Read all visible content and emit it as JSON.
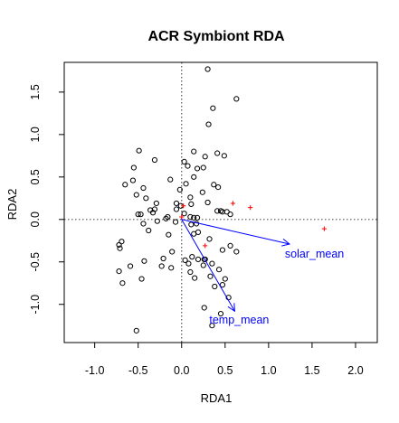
{
  "chart_data": {
    "type": "scatter",
    "title": "ACR Symbiont RDA",
    "xlabel": "RDA1",
    "ylabel": "RDA2",
    "xlim": [
      -1.35,
      2.25
    ],
    "ylim": [
      -1.45,
      1.85
    ],
    "xticks": [
      -1.0,
      -0.5,
      0.0,
      0.5,
      1.0,
      1.5,
      2.0
    ],
    "xtick_labels": [
      "-1.0",
      "-0.5",
      "0.0",
      "0.5",
      "1.0",
      "1.5",
      "2.0"
    ],
    "yticks": [
      -1.0,
      -0.5,
      0.0,
      0.5,
      1.0,
      1.5
    ],
    "ytick_labels": [
      "-1.0",
      "-0.5",
      "0.0",
      "0.5",
      "1.0",
      "1.5"
    ],
    "reference_lines": {
      "x": 0,
      "y": 0,
      "style": "dotted"
    },
    "colors": {
      "sites": "#000000",
      "species": "#ff0000",
      "arrows": "#0000ff",
      "refline": "#555555"
    },
    "series": [
      {
        "name": "sites",
        "marker": "open-circle",
        "points": [
          [
            0.3,
            1.77
          ],
          [
            0.63,
            1.42
          ],
          [
            0.36,
            1.31
          ],
          [
            0.31,
            1.12
          ],
          [
            0.14,
            0.8
          ],
          [
            0.49,
            0.75
          ],
          [
            0.27,
            0.74
          ],
          [
            0.41,
            0.78
          ],
          [
            -0.49,
            0.81
          ],
          [
            -0.55,
            0.61
          ],
          [
            -0.31,
            0.7
          ],
          [
            -0.65,
            0.41
          ],
          [
            -0.56,
            0.46
          ],
          [
            -0.44,
            0.37
          ],
          [
            -0.13,
            0.47
          ],
          [
            -0.52,
            0.29
          ],
          [
            -0.41,
            0.25
          ],
          [
            -0.29,
            0.19
          ],
          [
            -0.47,
            0.06
          ],
          [
            -0.5,
            0.06
          ],
          [
            -0.36,
            0.11
          ],
          [
            -0.33,
            0.08
          ],
          [
            -0.31,
            0.12
          ],
          [
            -0.02,
            0.35
          ],
          [
            0.05,
            0.42
          ],
          [
            0.03,
            0.68
          ],
          [
            0.07,
            0.63
          ],
          [
            0.18,
            0.6
          ],
          [
            0.25,
            0.61
          ],
          [
            0.14,
            0.5
          ],
          [
            0.37,
            0.41
          ],
          [
            0.42,
            0.38
          ],
          [
            0.24,
            0.32
          ],
          [
            0.1,
            0.26
          ],
          [
            0.3,
            0.2
          ],
          [
            0.11,
            0.18
          ],
          [
            0.41,
            0.1
          ],
          [
            0.45,
            0.1
          ],
          [
            0.47,
            0.09
          ],
          [
            0.52,
            0.09
          ],
          [
            0.56,
            0.06
          ],
          [
            0.03,
            0.07
          ],
          [
            0.1,
            0.03
          ],
          [
            0.14,
            0.02
          ],
          [
            0.18,
            0.02
          ],
          [
            -0.06,
            0.12
          ],
          [
            -0.16,
            0.03
          ],
          [
            -0.18,
            0.01
          ],
          [
            -0.06,
            0.19
          ],
          [
            -0.01,
            0.16
          ],
          [
            -0.28,
            -0.02
          ],
          [
            -0.38,
            -0.13
          ],
          [
            -0.44,
            -0.05
          ],
          [
            -0.15,
            -0.18
          ],
          [
            -0.07,
            -0.03
          ],
          [
            0.11,
            -0.06
          ],
          [
            0.17,
            -0.05
          ],
          [
            0.14,
            -0.17
          ],
          [
            0.19,
            -0.15
          ],
          [
            0.32,
            -0.23
          ],
          [
            -0.69,
            -0.26
          ],
          [
            -0.71,
            -0.34
          ],
          [
            -0.72,
            -0.61
          ],
          [
            -0.68,
            -0.75
          ],
          [
            -0.46,
            -0.7
          ],
          [
            -0.59,
            -0.55
          ],
          [
            -0.43,
            -0.49
          ],
          [
            -0.21,
            -0.46
          ],
          [
            -0.11,
            -0.38
          ],
          [
            -0.23,
            -0.55
          ],
          [
            -0.12,
            -0.57
          ],
          [
            0.04,
            -0.48
          ],
          [
            0.08,
            -0.52
          ],
          [
            0.12,
            -0.44
          ],
          [
            0.19,
            -0.47
          ],
          [
            0.26,
            -0.47
          ],
          [
            0.1,
            -0.62
          ],
          [
            0.15,
            -0.69
          ],
          [
            0.25,
            -0.54
          ],
          [
            0.27,
            -0.47
          ],
          [
            0.35,
            -0.52
          ],
          [
            0.43,
            -0.59
          ],
          [
            0.33,
            -0.67
          ],
          [
            0.38,
            -0.79
          ],
          [
            0.47,
            -0.77
          ],
          [
            0.5,
            -0.7
          ],
          [
            0.54,
            -0.92
          ],
          [
            0.45,
            -1.11
          ],
          [
            0.35,
            -1.25
          ],
          [
            0.47,
            -0.36
          ],
          [
            0.26,
            -1.04
          ],
          [
            -0.52,
            -1.31
          ],
          [
            0.63,
            -0.38
          ],
          [
            -0.72,
            -0.3
          ],
          [
            0.56,
            -0.31
          ]
        ]
      },
      {
        "name": "species",
        "marker": "plus",
        "points": [
          [
            0.02,
            0.16
          ],
          [
            0.59,
            0.19
          ],
          [
            0.79,
            0.14
          ],
          [
            1.64,
            -0.11
          ],
          [
            0.27,
            -0.31
          ],
          [
            0.0,
            0.03
          ]
        ]
      }
    ],
    "biplot_arrows": [
      {
        "label": "solar_mean",
        "x": 1.24,
        "y": -0.29
      },
      {
        "label": "temp_mean",
        "x": 0.61,
        "y": -1.08
      }
    ]
  }
}
